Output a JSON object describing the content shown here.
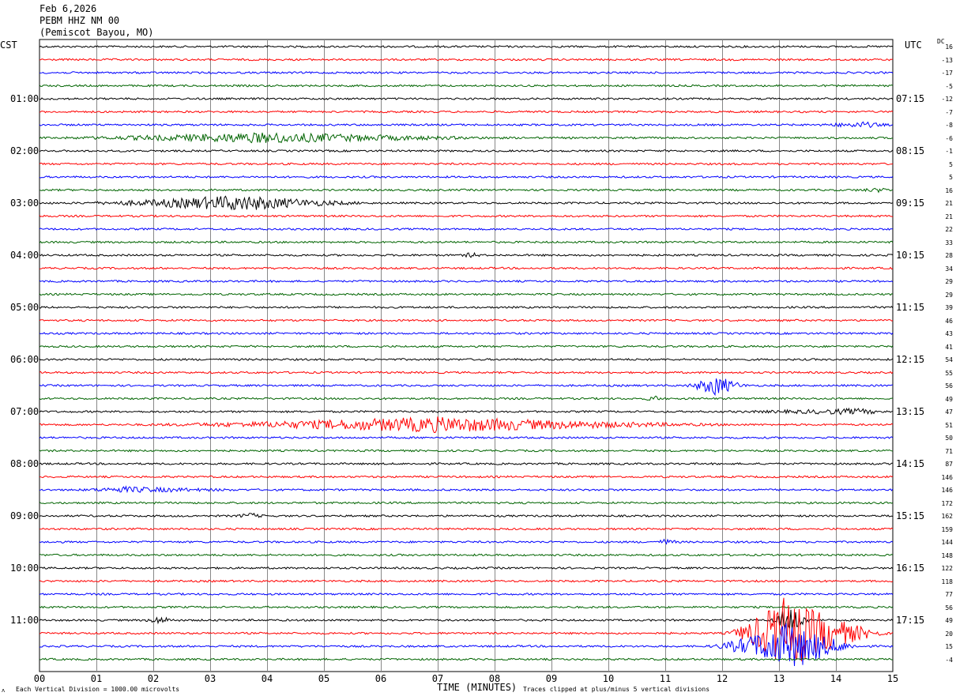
{
  "header": {
    "date": "Feb 6,2026",
    "station": "PEBM HHZ NM 00",
    "location": "(Pemiscot Bayou, MO)"
  },
  "left_timezone": "CST",
  "right_timezone": "UTC",
  "dc_label": "DC",
  "corner_mark": "ʌ",
  "footnotes": {
    "scale": "Each Vertical Division = 1000.00 microvolts",
    "clipping": "Traces clipped at plus/minus 5 vertical divisions"
  },
  "chart_data": {
    "type": "line",
    "xlabel": "TIME (MINUTES)",
    "xlim": [
      0,
      15
    ],
    "x_ticks": [
      "00",
      "01",
      "02",
      "03",
      "04",
      "05",
      "06",
      "07",
      "08",
      "09",
      "10",
      "11",
      "12",
      "13",
      "14",
      "15"
    ],
    "left_ticks": [
      {
        "label": "01:00",
        "row": 4
      },
      {
        "label": "02:00",
        "row": 8
      },
      {
        "label": "03:00",
        "row": 12
      },
      {
        "label": "04:00",
        "row": 16
      },
      {
        "label": "05:00",
        "row": 20
      },
      {
        "label": "06:00",
        "row": 24
      },
      {
        "label": "07:00",
        "row": 28
      },
      {
        "label": "08:00",
        "row": 32
      },
      {
        "label": "09:00",
        "row": 36
      },
      {
        "label": "10:00",
        "row": 40
      },
      {
        "label": "11:00",
        "row": 44
      }
    ],
    "right_ticks": [
      {
        "label": "07:15",
        "row": 4
      },
      {
        "label": "08:15",
        "row": 8
      },
      {
        "label": "09:15",
        "row": 12
      },
      {
        "label": "10:15",
        "row": 16
      },
      {
        "label": "11:15",
        "row": 20
      },
      {
        "label": "12:15",
        "row": 24
      },
      {
        "label": "13:15",
        "row": 28
      },
      {
        "label": "14:15",
        "row": 32
      },
      {
        "label": "15:15",
        "row": 36
      },
      {
        "label": "16:15",
        "row": 40
      },
      {
        "label": "17:15",
        "row": 44
      }
    ],
    "trace_colors": [
      "#000000",
      "#ff0000",
      "#0000ff",
      "#006400"
    ],
    "dc_offsets": [
      "16",
      "-13",
      "-17",
      "-5",
      "-12",
      "-7",
      "-8",
      "-6",
      "-1",
      "5",
      "5",
      "16",
      "21",
      "21",
      "22",
      "33",
      "28",
      "34",
      "29",
      "29",
      "39",
      "46",
      "43",
      "41",
      "54",
      "55",
      "56",
      "49",
      "47",
      "51",
      "50",
      "71",
      "87",
      "146",
      "146",
      "172",
      "162",
      "159",
      "144",
      "148",
      "122",
      "118",
      "77",
      "56",
      "49",
      "20",
      "15",
      "-4"
    ],
    "events": [
      {
        "row": 7,
        "start": 0,
        "end": 8.5,
        "peak": 4,
        "amp": 6
      },
      {
        "row": 6,
        "start": 13.5,
        "end": 15,
        "peak": 14.5,
        "amp": 3
      },
      {
        "row": 11,
        "start": 14.2,
        "end": 15,
        "peak": 14.8,
        "amp": 2
      },
      {
        "row": 12,
        "start": 0.5,
        "end": 6,
        "peak": 3.5,
        "amp": 9
      },
      {
        "row": 16,
        "start": 7.4,
        "end": 7.8,
        "peak": 7.6,
        "amp": 3
      },
      {
        "row": 26,
        "start": 11.3,
        "end": 12.5,
        "peak": 11.9,
        "amp": 12
      },
      {
        "row": 27,
        "start": 10.6,
        "end": 11.0,
        "peak": 10.8,
        "amp": 3
      },
      {
        "row": 28,
        "start": 12.0,
        "end": 15,
        "peak": 14.4,
        "amp": 3
      },
      {
        "row": 29,
        "start": 1.5,
        "end": 12.5,
        "peak": 7,
        "amp": 9
      },
      {
        "row": 34,
        "start": 0.6,
        "end": 3.8,
        "peak": 1.5,
        "amp": 3
      },
      {
        "row": 36,
        "start": 3.4,
        "end": 4.0,
        "peak": 3.7,
        "amp": 3
      },
      {
        "row": 38,
        "start": 10.8,
        "end": 11.3,
        "peak": 11.0,
        "amp": 3
      },
      {
        "row": 44,
        "start": 1.8,
        "end": 2.5,
        "peak": 2.1,
        "amp": 4
      },
      {
        "row": 44,
        "start": 12.8,
        "end": 13.6,
        "peak": 13.2,
        "amp": 20
      },
      {
        "row": 45,
        "start": 12.0,
        "end": 15,
        "peak": 13.1,
        "amp": 45
      },
      {
        "row": 46,
        "start": 11.7,
        "end": 14.5,
        "peak": 13.2,
        "amp": 30
      }
    ]
  }
}
